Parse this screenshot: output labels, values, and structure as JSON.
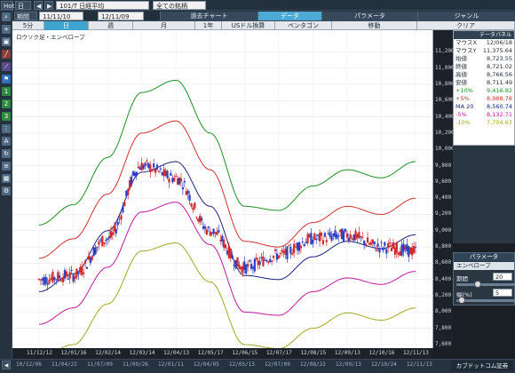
{
  "topbar": {
    "hot": "Hot",
    "index": "日経",
    "symbol": "101/T 日経平均",
    "range": "全ての銘柄"
  },
  "row2": {
    "period_label": "期間",
    "from": "11/11/10",
    "to": "12/11/09",
    "tabs": [
      "過去チャート",
      "データ",
      "パラメータ",
      "ジャンル"
    ]
  },
  "row3": {
    "tabs": [
      "5分",
      "日",
      "週",
      "月",
      "1年",
      "USドル換算"
    ],
    "right_tabs": [
      "ペンタゴン",
      "移動",
      "クリア"
    ]
  },
  "chart_title": "ロウソク足・エンベロープ",
  "info": {
    "head": "データパネル",
    "rows": [
      {
        "label": "マウスX",
        "value": "12/06/18"
      },
      {
        "label": "マウスY",
        "value": "11,375.64"
      },
      {
        "label": "始値",
        "value": "8,723.55"
      },
      {
        "label": "終値",
        "value": "8,721.02"
      },
      {
        "label": "高値",
        "value": "8,766.56"
      },
      {
        "label": "安値",
        "value": "8,711.49"
      },
      {
        "label": "+10%",
        "value": "9,416.82"
      },
      {
        "label": "+5%",
        "value": "8,988.78"
      },
      {
        "label": "MA 20",
        "value": "8,560.74"
      },
      {
        "label": "-5%",
        "value": "8,132.71"
      },
      {
        "label": "-10%",
        "value": "7,704.67"
      }
    ]
  },
  "params": {
    "head": "パラメータ",
    "sub": "エンベロープ",
    "period_label": "期間",
    "period_value": "20",
    "width_label": "幅(%)",
    "width_value": "5"
  },
  "scroll": {
    "labels": [
      "10/12/06",
      "11/04/22",
      "11/07/09",
      "11/09/26",
      "12/01/11",
      "12/04/05",
      "12/05/13",
      "12/07/09",
      "12/08/22",
      "12/09/13",
      "12/10/24",
      "12/11/13"
    ],
    "brand": "カブドットコム証券"
  },
  "colors": {
    "up": "#d12a2a",
    "down": "#2e3fbf",
    "ma": "#1a237e",
    "plus10": "#1f8f24",
    "plus5": "#d32f2f",
    "minus5": "#c2189b",
    "minus10": "#a6a623",
    "accent": "#3fa4cf"
  },
  "chart_data": {
    "type": "line",
    "title": "ロウソク足・エンベロープ",
    "ylim": [
      7600,
      11400
    ],
    "yticks": [
      7600,
      7800,
      8000,
      8200,
      8400,
      8600,
      8800,
      9000,
      9200,
      9400,
      9600,
      9800,
      10000,
      10200,
      10400,
      10600,
      10800,
      11000,
      11200
    ],
    "categories": [
      "11/12/12",
      "12/01/16",
      "12/02/14",
      "12/03/14",
      "12/04/13",
      "12/05/17",
      "12/06/15",
      "12/07/17",
      "12/08/15",
      "12/09/13",
      "12/10/16",
      "12/11/13"
    ],
    "series": [
      {
        "name": "+10%",
        "values": [
          9070,
          9320,
          9900,
          10700,
          10850,
          10200,
          9300,
          9250,
          9550,
          9750,
          9650,
          9850
        ]
      },
      {
        "name": "+5%",
        "values": [
          8660,
          8900,
          9450,
          10200,
          10350,
          9750,
          8870,
          8800,
          9100,
          9300,
          9200,
          9400
        ]
      },
      {
        "name": "MA 20",
        "values": [
          8250,
          8470,
          9000,
          9720,
          9850,
          9300,
          8450,
          8400,
          8680,
          8870,
          8780,
          8950
        ]
      },
      {
        "name": "-5%",
        "values": [
          7850,
          8050,
          8550,
          9230,
          9350,
          8830,
          8000,
          7960,
          8250,
          8420,
          8340,
          8500
        ]
      },
      {
        "name": "-10%",
        "values": [
          7430,
          7600,
          8100,
          8750,
          8850,
          8370,
          7600,
          7550,
          7800,
          7990,
          7900,
          8050
        ]
      },
      {
        "name": "candles",
        "values": [
          8400,
          8450,
          8900,
          9800,
          9650,
          9000,
          8550,
          8700,
          8900,
          8950,
          8800,
          8750
        ]
      }
    ]
  }
}
